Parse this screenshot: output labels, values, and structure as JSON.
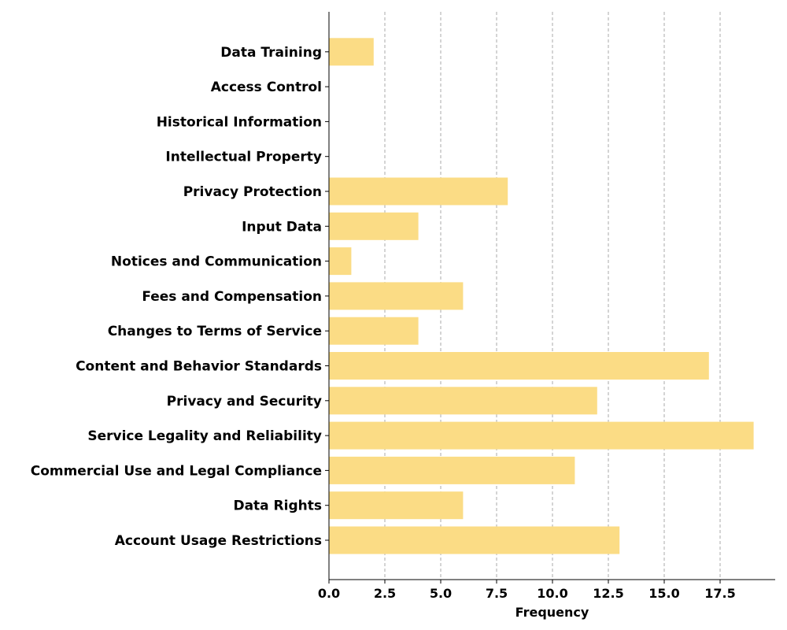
{
  "chart_data": {
    "type": "bar",
    "orientation": "horizontal",
    "categories": [
      "Account Usage Restrictions",
      "Data Rights",
      "Commercial Use and Legal Compliance",
      "Service Legality and Reliability",
      "Privacy and Security",
      "Content and Behavior Standards",
      "Changes to Terms of Service",
      "Fees and Compensation",
      "Notices and Communication",
      "Input Data",
      "Privacy Protection",
      "Intellectual Property",
      "Historical Information",
      "Access Control",
      "Data Training"
    ],
    "values": [
      13,
      6,
      11,
      19,
      12,
      17,
      4,
      6,
      1,
      4,
      8,
      0,
      0,
      0,
      2
    ],
    "xlabel": "Frequency",
    "ylabel": "",
    "xlim": [
      0,
      20
    ],
    "xticks": [
      "0.0",
      "2.5",
      "5.0",
      "7.5",
      "10.0",
      "12.5",
      "15.0",
      "17.5"
    ],
    "grid": "x-dashed",
    "bar_color": "#fbdc85",
    "legend": "none"
  }
}
